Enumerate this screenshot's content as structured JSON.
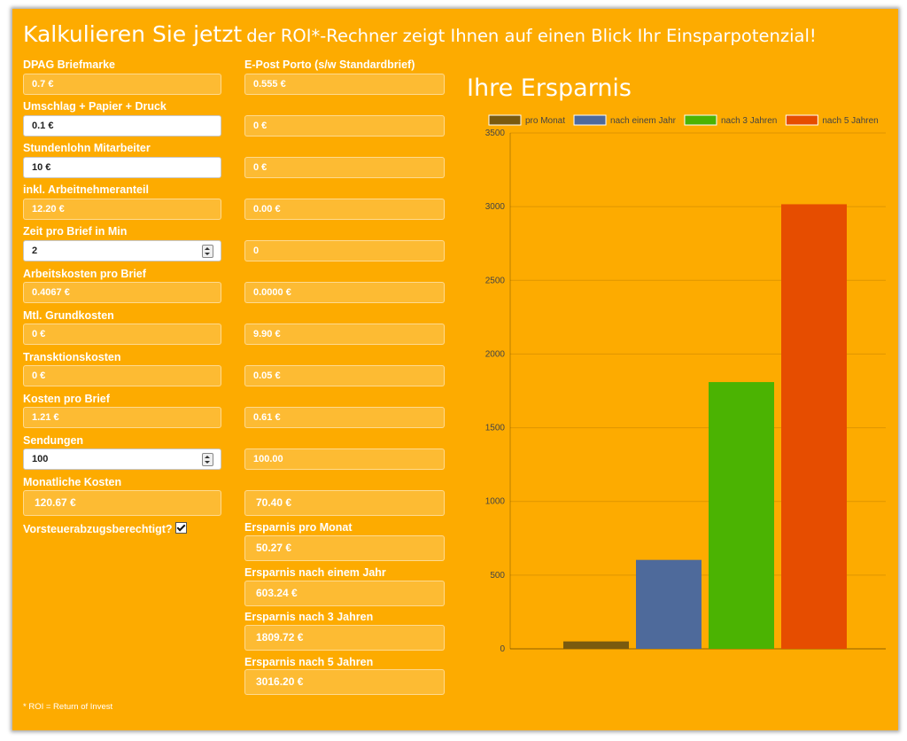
{
  "header": {
    "title_big": "Kalkulieren Sie jetzt",
    "title_rest": "der ROI*-Rechner zeigt Ihnen auf einen Blick Ihr Einsparpotenzial!"
  },
  "left": {
    "dpag_label": "DPAG Briefmarke",
    "dpag_value": "0.7 €",
    "umschlag_label": "Umschlag + Papier + Druck",
    "umschlag_value": "0.1 €",
    "stundenlohn_label": "Stundenlohn Mitarbeiter",
    "stundenlohn_value": "10 €",
    "inkl_label": "inkl. Arbeitnehmeranteil",
    "inkl_value": "12.20 €",
    "zeit_label": "Zeit pro Brief in Min",
    "zeit_value": "2",
    "arbeitskosten_label": "Arbeitskosten pro Brief",
    "arbeitskosten_value": "0.4067 €",
    "grundkosten_label": "Mtl. Grundkosten",
    "grundkosten_value": "0 €",
    "transaktion_label": "Transktionskosten",
    "transaktion_value": "0 €",
    "kosten_brief_label": "Kosten pro Brief",
    "kosten_brief_value": "1.21 €",
    "sendungen_label": "Sendungen",
    "sendungen_value": "100",
    "monatliche_label": "Monatliche Kosten",
    "monatliche_value": "120.67 €",
    "vorsteuer_label": "Vorsteuerabzugsberechtigt?"
  },
  "right": {
    "porto_label": "E-Post Porto (s/w Standardbrief)",
    "porto_value": "0.555 €",
    "umschlag_value": "0 €",
    "stundenlohn_value": "0 €",
    "inkl_value": "0.00 €",
    "zeit_value": "0",
    "arbeitskosten_value": "0.0000 €",
    "grundkosten_value": "9.90 €",
    "transaktion_value": "0.05 €",
    "kosten_brief_value": "0.61 €",
    "sendungen_value": "100.00",
    "monatliche_value": "70.40 €",
    "ersparnis_monat_label": "Ersparnis pro Monat",
    "ersparnis_monat_value": "50.27 €",
    "ersparnis_jahr_label": "Ersparnis nach einem Jahr",
    "ersparnis_jahr_value": "603.24 €",
    "ersparnis_3_label": "Ersparnis nach 3 Jahren",
    "ersparnis_3_value": "1809.72 €",
    "ersparnis_5_label": "Ersparnis nach 5 Jahren",
    "ersparnis_5_value": "3016.20 €"
  },
  "footnote": "* ROI = Return of Invest",
  "chart_title": "Ihre Ersparnis",
  "chart_data": {
    "type": "bar",
    "title": "Ihre Ersparnis",
    "xlabel": "",
    "ylabel": "",
    "ylim": [
      0,
      3500
    ],
    "yticks": [
      0,
      500,
      1000,
      1500,
      2000,
      2500,
      3000,
      3500
    ],
    "grid": true,
    "legend": "top",
    "series": [
      {
        "name": "pro Monat",
        "value": 50.27,
        "color": "#7a5a0e"
      },
      {
        "name": "nach einem Jahr",
        "value": 603.24,
        "color": "#4e6a9b"
      },
      {
        "name": "nach 3 Jahren",
        "value": 1809.72,
        "color": "#4bb302"
      },
      {
        "name": "nach 5 Jahren",
        "value": 3016.2,
        "color": "#e64d00"
      }
    ]
  },
  "colors": {
    "accent": "#fdab00",
    "text": "#ffffff"
  }
}
